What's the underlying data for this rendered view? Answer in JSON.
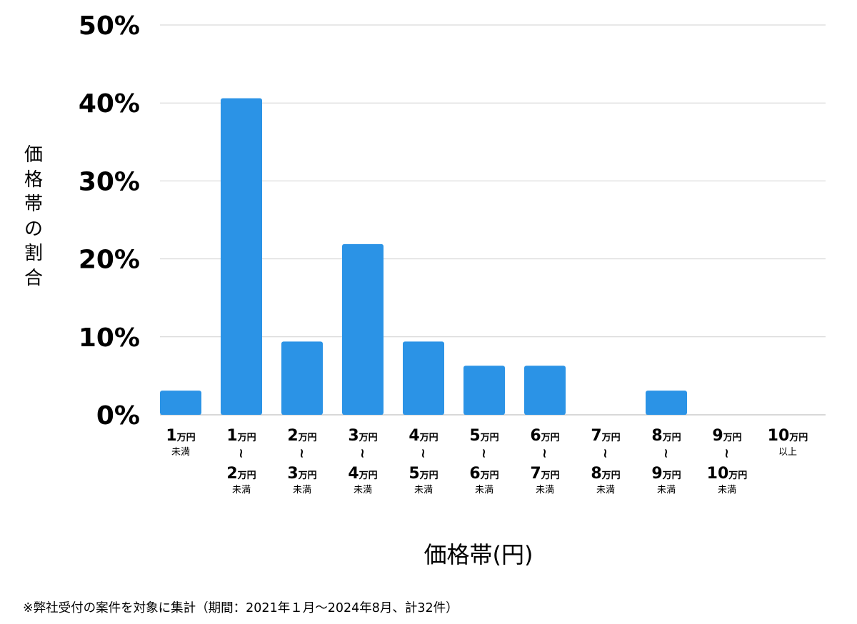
{
  "chart_data": {
    "type": "bar",
    "categories": [
      {
        "start_num": "1",
        "start_unit": "万円",
        "start_note": "未満",
        "end_num": "",
        "end_unit": "",
        "end_note": ""
      },
      {
        "start_num": "1",
        "start_unit": "万円",
        "start_note": "",
        "end_num": "2",
        "end_unit": "万円",
        "end_note": "未満"
      },
      {
        "start_num": "2",
        "start_unit": "万円",
        "start_note": "",
        "end_num": "3",
        "end_unit": "万円",
        "end_note": "未満"
      },
      {
        "start_num": "3",
        "start_unit": "万円",
        "start_note": "",
        "end_num": "4",
        "end_unit": "万円",
        "end_note": "未満"
      },
      {
        "start_num": "4",
        "start_unit": "万円",
        "start_note": "",
        "end_num": "5",
        "end_unit": "万円",
        "end_note": "未満"
      },
      {
        "start_num": "5",
        "start_unit": "万円",
        "start_note": "",
        "end_num": "6",
        "end_unit": "万円",
        "end_note": "未満"
      },
      {
        "start_num": "6",
        "start_unit": "万円",
        "start_note": "",
        "end_num": "7",
        "end_unit": "万円",
        "end_note": "未満"
      },
      {
        "start_num": "7",
        "start_unit": "万円",
        "start_note": "",
        "end_num": "8",
        "end_unit": "万円",
        "end_note": "未満"
      },
      {
        "start_num": "8",
        "start_unit": "万円",
        "start_note": "",
        "end_num": "9",
        "end_unit": "万円",
        "end_note": "未満"
      },
      {
        "start_num": "9",
        "start_unit": "万円",
        "start_note": "",
        "end_num": "10",
        "end_unit": "万円",
        "end_note": "未満"
      },
      {
        "start_num": "10",
        "start_unit": "万円",
        "start_note": "以上",
        "end_num": "",
        "end_unit": "",
        "end_note": ""
      }
    ],
    "range_symbol": "~",
    "values": [
      3.1,
      40.6,
      9.4,
      21.9,
      9.4,
      6.3,
      6.3,
      0,
      3.1,
      0,
      0
    ],
    "yticks": [
      "0%",
      "10%",
      "20%",
      "30%",
      "40%",
      "50%"
    ],
    "ylim": [
      0,
      50
    ],
    "xlabel": "価格帯(円)",
    "ylabel": "価格帯の割合",
    "grid": true,
    "bar_color": "#2b93e6",
    "grid_color": "#d0d0d0"
  },
  "footnote": "※弊社受付の案件を対象に集計（期間：2021年１月～2024年8月、計32件）"
}
